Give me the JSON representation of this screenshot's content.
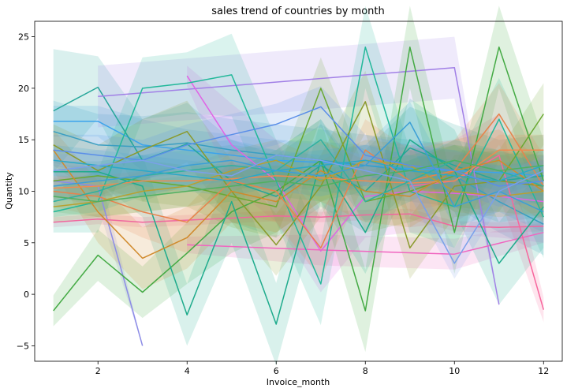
{
  "chart_data": {
    "type": "line",
    "title": "sales trend of countries by month",
    "xlabel": "Invoice_month",
    "ylabel": "Quantity",
    "xlim": [
      0.58,
      12.42
    ],
    "ylim": [
      -6.5,
      26.5
    ],
    "x_ticks": [
      2,
      4,
      6,
      8,
      10,
      12
    ],
    "y_ticks": [
      -5,
      0,
      5,
      10,
      15,
      20,
      25
    ],
    "grid": false,
    "legend": "none",
    "series": [
      {
        "color": "#3ba3ec",
        "x": [
          1,
          2,
          3,
          4,
          5,
          6,
          7,
          8,
          9,
          10,
          11,
          12
        ],
        "y": [
          16.8,
          16.8,
          14.5,
          14.0,
          13.5,
          13.0,
          12.8,
          12.5,
          12.2,
          12.0,
          11.8,
          11.5
        ],
        "band": [
          1.5,
          1.5,
          2.5,
          2.0,
          2.0,
          2.0,
          2.0,
          2.0,
          2.0,
          2.0,
          2.0,
          2.0
        ]
      },
      {
        "color": "#26a69a",
        "x": [
          1,
          2,
          3,
          4,
          5,
          6,
          7,
          8,
          9,
          10,
          11,
          12
        ],
        "y": [
          17.8,
          20.1,
          13.0,
          14.6,
          11.0,
          9.5,
          12.5,
          10.0,
          14.2,
          12.5,
          11.0,
          11.5
        ],
        "band": [
          6.0,
          3.0,
          4.0,
          4.0,
          4.0,
          4.0,
          4.0,
          4.0,
          4.0,
          4.0,
          4.0,
          4.0
        ]
      },
      {
        "color": "#3a9ec2",
        "x": [
          1,
          2,
          3,
          4,
          5,
          6,
          7,
          8,
          9,
          10,
          11,
          12
        ],
        "y": [
          15.8,
          14.5,
          14.3,
          14.7,
          14.0,
          13.5,
          13.0,
          12.5,
          12.0,
          11.5,
          9.0,
          6.8
        ],
        "band": [
          3.0,
          3.0,
          3.0,
          3.0,
          3.0,
          3.0,
          3.0,
          3.0,
          3.0,
          3.0,
          3.0,
          3.0
        ]
      },
      {
        "color": "#a180e6",
        "x": [
          2,
          10,
          11
        ],
        "y": [
          19.2,
          22.0,
          -1.0
        ],
        "band": [
          3.0,
          3.0,
          0
        ]
      },
      {
        "color": "#8c8ce6",
        "x": [
          1,
          2,
          3
        ],
        "y": [
          11.0,
          10.5,
          -5.0
        ],
        "band": [
          1.5,
          2.0,
          0
        ]
      },
      {
        "color": "#e063e6",
        "x": [
          4,
          5,
          6,
          7,
          8,
          9,
          10,
          11,
          12
        ],
        "y": [
          21.2,
          14.5,
          11.0,
          4.2,
          9.5,
          10.0,
          9.8,
          9.5,
          9.0
        ],
        "band": [
          1.0,
          4.0,
          4.0,
          4.0,
          4.0,
          4.0,
          4.0,
          4.0,
          4.0
        ]
      },
      {
        "color": "#f066c0",
        "x": [
          4,
          7,
          10,
          12
        ],
        "y": [
          4.8,
          4.3,
          3.9,
          6.0
        ],
        "band": [
          0.8,
          1.5,
          1.5,
          1.0
        ]
      },
      {
        "color": "#f0679e",
        "x": [
          1,
          2,
          3,
          4,
          5,
          6,
          7,
          8,
          9,
          10,
          11,
          12
        ],
        "y": [
          7.0,
          7.3,
          7.0,
          7.2,
          7.4,
          7.6,
          7.5,
          7.7,
          7.8,
          6.6,
          6.5,
          6.6
        ],
        "band": [
          0.5,
          0.5,
          0.5,
          0.5,
          0.5,
          0.5,
          0.5,
          0.5,
          0.5,
          0.5,
          0.5,
          0.5
        ]
      },
      {
        "color": "#f7669d",
        "x": [
          9,
          10,
          11,
          12
        ],
        "y": [
          10.5,
          11.0,
          13.5,
          -1.5
        ],
        "band": [
          4.0,
          4.0,
          4.0,
          1.2
        ]
      },
      {
        "color": "#44aa44",
        "x": [
          1,
          2,
          3,
          4,
          5,
          6,
          7,
          8,
          9,
          10,
          11,
          12
        ],
        "y": [
          -1.6,
          3.8,
          0.2,
          4.0,
          8.0,
          10.0,
          13.0,
          -1.6,
          24.0,
          6.0,
          24.0,
          11.0
        ],
        "band": [
          1.5,
          2.5,
          2.5,
          3.0,
          4.0,
          4.0,
          4.0,
          4.0,
          4.0,
          4.0,
          4.0,
          4.0
        ]
      },
      {
        "color": "#22b89a",
        "x": [
          1,
          2,
          3,
          4,
          5,
          6,
          7,
          8,
          9,
          10,
          11,
          12
        ],
        "y": [
          8.0,
          9.0,
          20.0,
          20.5,
          21.3,
          11.0,
          1.0,
          24.0,
          10.0,
          8.5,
          17.0,
          7.5
        ],
        "band": [
          2.0,
          3.0,
          3.0,
          3.0,
          4.0,
          4.0,
          4.0,
          4.0,
          4.0,
          4.0,
          4.0,
          4.0
        ]
      },
      {
        "color": "#1eab8c",
        "x": [
          1,
          2,
          3,
          4,
          5,
          6,
          7,
          8,
          9,
          10,
          11,
          12
        ],
        "y": [
          11.9,
          11.9,
          10.5,
          -2.0,
          9.0,
          -2.9,
          13.0,
          6.0,
          15.0,
          12.0,
          3.0,
          8.5
        ],
        "band": [
          1.0,
          1.0,
          3.0,
          3.0,
          4.0,
          4.0,
          4.0,
          4.0,
          4.0,
          4.0,
          4.0,
          4.0
        ]
      },
      {
        "color": "#6aa832",
        "x": [
          1,
          2,
          3,
          4,
          5,
          6,
          7,
          8,
          9,
          10,
          11,
          12
        ],
        "y": [
          11.0,
          11.5,
          11.0,
          10.5,
          9.5,
          8.5,
          20.0,
          9.0,
          10.0,
          11.5,
          11.0,
          17.5
        ],
        "band": [
          1.0,
          1.0,
          2.0,
          2.0,
          3.0,
          3.0,
          3.0,
          3.0,
          3.0,
          3.0,
          3.0,
          3.0
        ]
      },
      {
        "color": "#8a9a2c",
        "x": [
          1,
          2,
          3,
          4,
          5,
          6,
          7,
          8,
          9,
          10,
          11,
          12
        ],
        "y": [
          14.5,
          12.0,
          14.0,
          15.8,
          10.0,
          4.8,
          10.5,
          18.7,
          4.5,
          10.5,
          11.0,
          10.5
        ],
        "band": [
          2.0,
          2.5,
          3.0,
          3.0,
          3.0,
          3.0,
          3.0,
          3.0,
          3.0,
          3.0,
          3.0,
          3.0
        ]
      },
      {
        "color": "#d08a2c",
        "x": [
          1,
          2,
          3,
          4,
          5,
          6,
          7,
          8,
          9,
          10,
          11,
          12
        ],
        "y": [
          14.0,
          8.0,
          3.5,
          5.5,
          10.0,
          9.0,
          12.0,
          10.0,
          9.5,
          12.0,
          13.0,
          10.0
        ],
        "band": [
          2.0,
          3.0,
          3.0,
          3.0,
          3.0,
          3.0,
          3.0,
          3.0,
          3.0,
          3.0,
          3.0,
          3.0
        ]
      },
      {
        "color": "#e8824c",
        "x": [
          1,
          2,
          3,
          4,
          5,
          6,
          7,
          8,
          9,
          10,
          11,
          12
        ],
        "y": [
          10.0,
          9.5,
          8.0,
          7.0,
          11.0,
          10.0,
          4.5,
          14.0,
          11.0,
          12.0,
          17.5,
          10.5
        ],
        "band": [
          1.5,
          2.0,
          2.5,
          3.0,
          3.0,
          3.0,
          3.0,
          3.0,
          3.0,
          3.0,
          3.0,
          3.0
        ]
      },
      {
        "color": "#f08a50",
        "x": [
          1,
          2,
          3,
          4,
          5,
          6,
          7,
          8,
          9,
          10,
          11,
          12
        ],
        "y": [
          10.3,
          10.5,
          11.0,
          11.0,
          11.2,
          11.5,
          11.3,
          11.0,
          10.8,
          11.0,
          14.0,
          14.0
        ],
        "band": [
          1.0,
          1.0,
          1.0,
          1.0,
          1.0,
          1.0,
          1.0,
          1.0,
          1.0,
          1.0,
          1.5,
          1.5
        ]
      },
      {
        "color": "#b8a030",
        "x": [
          1,
          2,
          3,
          4,
          5,
          6,
          7,
          8,
          9,
          10,
          11,
          12
        ],
        "y": [
          8.5,
          9.0,
          10.0,
          10.5,
          12.0,
          13.0,
          11.0,
          13.0,
          12.5,
          10.0,
          9.5,
          10.0
        ],
        "band": [
          1.5,
          1.5,
          2.0,
          2.0,
          2.0,
          2.0,
          2.0,
          2.0,
          2.0,
          2.0,
          2.0,
          2.0
        ]
      },
      {
        "color": "#30b0a0",
        "x": [
          1,
          2,
          3,
          4,
          5,
          6,
          7,
          8,
          9,
          10,
          11,
          12
        ],
        "y": [
          9.0,
          10.0,
          11.5,
          12.0,
          12.5,
          12.0,
          15.0,
          9.0,
          11.0,
          13.0,
          12.0,
          10.5
        ],
        "band": [
          1.5,
          2.0,
          2.0,
          2.0,
          2.0,
          2.0,
          2.0,
          2.0,
          2.0,
          2.0,
          2.0,
          2.0
        ]
      },
      {
        "color": "#2aa8c8",
        "x": [
          1,
          2,
          3,
          4,
          5,
          6,
          7,
          8,
          9,
          10,
          11,
          12
        ],
        "y": [
          13.0,
          12.5,
          12.0,
          11.5,
          11.0,
          12.0,
          12.5,
          13.0,
          12.0,
          11.5,
          11.0,
          12.5
        ],
        "band": [
          1.5,
          1.5,
          1.5,
          1.5,
          1.5,
          1.5,
          1.5,
          1.5,
          1.5,
          1.5,
          1.5,
          1.5
        ]
      },
      {
        "color": "#5a8ee8",
        "x": [
          1,
          2,
          3,
          4,
          5,
          6,
          7,
          8,
          9,
          10,
          11,
          12
        ],
        "y": [
          14.0,
          13.5,
          13.0,
          14.5,
          15.5,
          16.5,
          18.2,
          13.5,
          12.5,
          12.0,
          10.5,
          11.0
        ],
        "band": [
          1.5,
          2.0,
          2.0,
          2.0,
          2.0,
          2.0,
          2.0,
          2.0,
          2.0,
          2.0,
          2.0,
          2.0
        ]
      },
      {
        "color": "#50b060",
        "x": [
          1,
          2,
          3,
          4,
          5,
          6,
          7,
          8,
          9,
          10,
          11,
          12
        ],
        "y": [
          9.5,
          9.0,
          9.5,
          10.0,
          10.5,
          11.0,
          10.5,
          11.5,
          12.0,
          13.0,
          12.0,
          12.5
        ],
        "band": [
          1.5,
          1.5,
          1.5,
          1.5,
          1.5,
          1.5,
          1.5,
          1.5,
          1.5,
          1.5,
          1.5,
          1.5
        ]
      },
      {
        "color": "#3c9fd6",
        "x": [
          1,
          2,
          3,
          4,
          5,
          6,
          7,
          8,
          9,
          10,
          11,
          12
        ],
        "y": [
          10.5,
          11.0,
          11.5,
          12.5,
          13.0,
          12.0,
          11.5,
          12.5,
          16.7,
          8.5,
          10.0,
          8.0
        ],
        "band": [
          1.5,
          1.5,
          2.0,
          2.0,
          2.0,
          2.0,
          2.0,
          2.0,
          2.0,
          2.0,
          2.0,
          2.0
        ]
      },
      {
        "color": "#7aa0ea",
        "x": [
          1,
          2,
          3,
          4,
          5,
          6,
          7,
          8,
          9,
          10,
          11,
          12
        ],
        "y": [
          12.0,
          12.5,
          13.0,
          12.0,
          11.5,
          13.5,
          13.0,
          12.0,
          11.0,
          3.0,
          10.0,
          12.0
        ],
        "band": [
          1.5,
          1.5,
          1.5,
          1.5,
          1.5,
          1.5,
          1.5,
          1.5,
          1.5,
          1.5,
          1.5,
          1.5
        ]
      }
    ]
  }
}
